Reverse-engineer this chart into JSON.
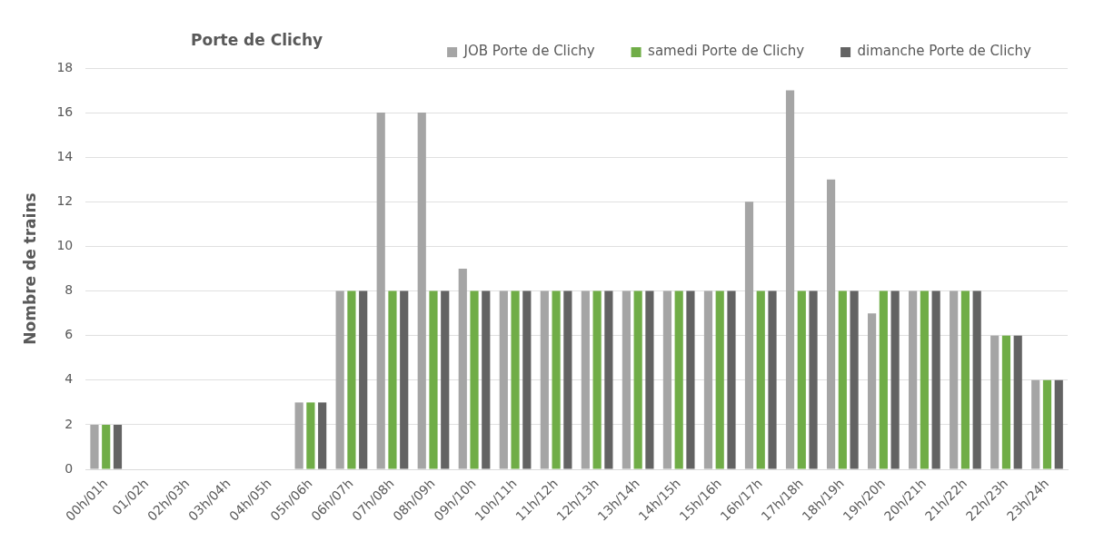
{
  "chart_data": {
    "type": "bar",
    "title": "Porte de Clichy",
    "ylabel": "Nombre de trains",
    "categories": [
      "00h/01h",
      "01/02h",
      "02h/03h",
      "03h/04h",
      "04h/05h",
      "05h/06h",
      "06h/07h",
      "07h/08h",
      "08h/09h",
      "09h/10h",
      "10h/11h",
      "11h/12h",
      "12h/13h",
      "13h/14h",
      "14h/15h",
      "15h/16h",
      "16h/17h",
      "17h/18h",
      "18h/19h",
      "19h/20h",
      "20h/21h",
      "21h/22h",
      "22h/23h",
      "23h/24h"
    ],
    "series": [
      {
        "name": "JOB Porte de Clichy",
        "color": "#a5a5a5",
        "values": [
          2,
          0,
          0,
          0,
          0,
          3,
          8,
          16,
          16,
          9,
          8,
          8,
          8,
          8,
          8,
          8,
          12,
          17,
          13,
          7,
          8,
          8,
          6,
          4
        ]
      },
      {
        "name": "samedi Porte de Clichy",
        "color": "#70ad47",
        "values": [
          2,
          0,
          0,
          0,
          0,
          3,
          8,
          8,
          8,
          8,
          8,
          8,
          8,
          8,
          8,
          8,
          8,
          8,
          8,
          8,
          8,
          8,
          6,
          4
        ]
      },
      {
        "name": "dimanche Porte de Clichy",
        "color": "#636363",
        "values": [
          2,
          0,
          0,
          0,
          0,
          3,
          8,
          8,
          8,
          8,
          8,
          8,
          8,
          8,
          8,
          8,
          8,
          8,
          8,
          8,
          8,
          8,
          6,
          4
        ]
      }
    ],
    "ylim": [
      0,
      18
    ],
    "yticks": [
      0,
      2,
      4,
      6,
      8,
      10,
      12,
      14,
      16,
      18
    ],
    "grid": "y",
    "legend": "top right"
  }
}
